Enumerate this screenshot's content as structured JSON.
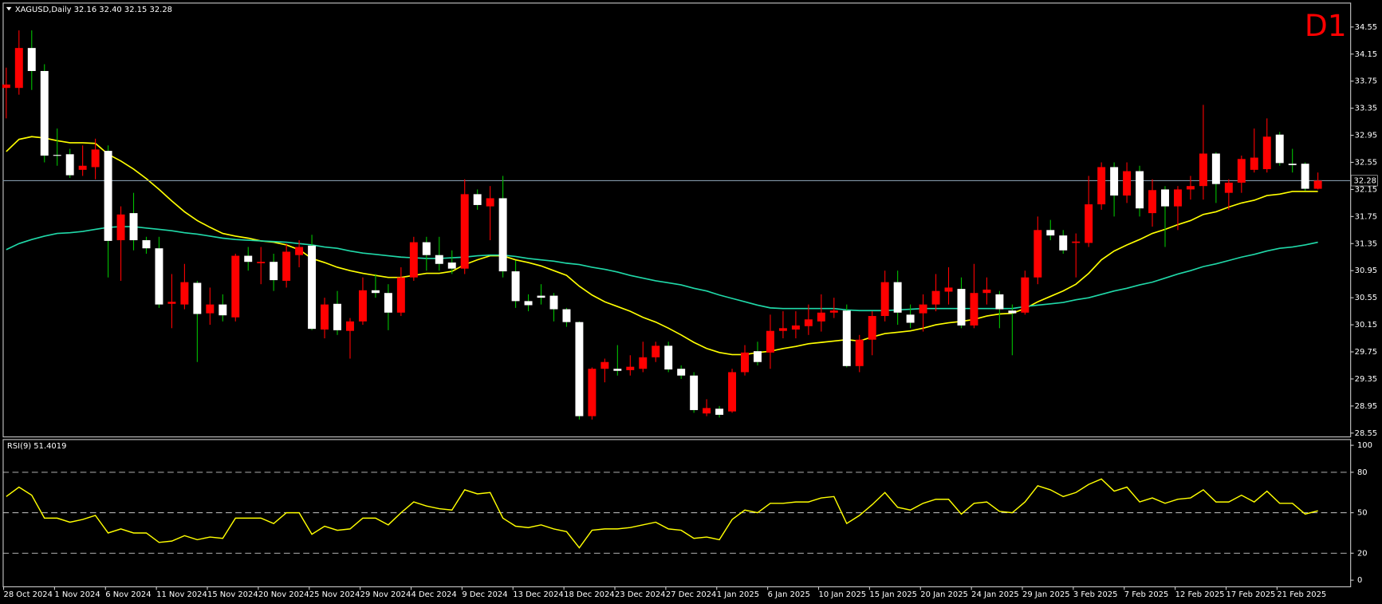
{
  "chart_data": [
    {
      "type": "candlestick",
      "title": "XAGUSD,Daily  32.16 32.40 32.15 32.28",
      "timeframe": "D1",
      "categories": [
        "28 Oct 2024",
        null,
        null,
        null,
        "1 Nov 2024",
        null,
        null,
        null,
        "6 Nov 2024",
        null,
        null,
        null,
        "11 Nov 2024",
        null,
        null,
        null,
        "15 Nov 2024",
        null,
        null,
        null,
        "20 Nov 2024",
        null,
        null,
        null,
        "25 Nov 2024",
        null,
        null,
        null,
        "29 Nov 2024",
        null,
        null,
        null,
        "4 Dec 2024",
        null,
        null,
        null,
        "9 Dec 2024",
        null,
        null,
        null,
        "13 Dec 2024",
        null,
        null,
        null,
        "18 Dec 2024",
        null,
        null,
        null,
        "23 Dec 2024",
        null,
        null,
        null,
        "27 Dec 2024",
        null,
        null,
        null,
        "1 Jan 2025",
        null,
        null,
        null,
        "6 Jan 2025",
        null,
        null,
        null,
        "10 Jan 2025",
        null,
        null,
        null,
        "15 Jan 2025",
        null,
        null,
        null,
        "20 Jan 2025",
        null,
        null,
        null,
        "24 Jan 2025",
        null,
        null,
        null,
        "29 Jan 2025",
        null,
        null,
        null,
        "3 Feb 2025",
        null,
        null,
        null,
        "7 Feb 2025",
        null,
        null,
        null,
        "12 Feb 2025",
        null,
        null,
        null,
        "17 Feb 2025",
        null,
        null,
        null,
        "21 Feb 2025",
        null,
        null,
        null
      ],
      "open": [
        33.65,
        33.65,
        34.24,
        33.9,
        32.66,
        32.67,
        32.44,
        32.48,
        32.72,
        31.4,
        31.8,
        31.4,
        31.28,
        30.46,
        30.45,
        30.77,
        30.32,
        30.45,
        30.26,
        31.17,
        31.06,
        31.08,
        30.8,
        31.18,
        31.32,
        30.08,
        30.46,
        30.06,
        30.2,
        30.66,
        30.62,
        30.33,
        30.85,
        31.37,
        31.18,
        31.07,
        30.98,
        32.08,
        31.9,
        32.02,
        30.94,
        30.5,
        30.58,
        30.58,
        30.38,
        30.19,
        28.8,
        29.5,
        29.5,
        29.48,
        29.5,
        29.67,
        29.84,
        29.5,
        29.4,
        28.84,
        28.91,
        28.87,
        29.45,
        29.76,
        29.74,
        30.06,
        30.08,
        30.13,
        30.2,
        30.33,
        30.36,
        29.54,
        29.93,
        30.28,
        30.78,
        30.3,
        30.32,
        30.45,
        30.64,
        30.68,
        30.14,
        30.62,
        30.6,
        30.36,
        30.33,
        30.85,
        31.55,
        31.47,
        31.36,
        31.36,
        31.93,
        32.48,
        32.06,
        32.42,
        31.8,
        32.15,
        31.9,
        32.15,
        32.2,
        32.68,
        32.1,
        32.25,
        32.44,
        32.45,
        32.96,
        32.53,
        32.53,
        32.16
      ],
      "high": [
        33.95,
        34.5,
        34.5,
        34.0,
        33.05,
        32.75,
        32.8,
        32.9,
        32.8,
        31.9,
        32.1,
        31.45,
        31.45,
        30.9,
        31.05,
        30.8,
        30.7,
        30.6,
        31.2,
        31.3,
        31.3,
        31.2,
        31.35,
        31.4,
        31.48,
        30.55,
        30.65,
        30.25,
        30.85,
        30.9,
        30.75,
        31.0,
        31.45,
        31.45,
        31.45,
        31.25,
        32.3,
        32.15,
        32.2,
        32.35,
        31.1,
        30.6,
        30.75,
        30.62,
        30.4,
        30.2,
        29.52,
        29.65,
        29.85,
        29.7,
        29.9,
        29.9,
        29.9,
        29.55,
        29.45,
        29.05,
        28.95,
        29.5,
        29.85,
        29.9,
        30.3,
        30.35,
        30.35,
        30.45,
        30.6,
        30.55,
        30.45,
        30.0,
        30.35,
        30.95,
        30.95,
        30.45,
        30.6,
        30.9,
        31.0,
        30.85,
        31.05,
        30.85,
        30.65,
        30.45,
        30.95,
        31.75,
        31.7,
        31.55,
        31.5,
        32.35,
        32.55,
        32.55,
        32.55,
        32.5,
        32.3,
        32.2,
        32.2,
        32.35,
        33.4,
        32.7,
        32.3,
        32.65,
        33.05,
        33.2,
        33.0,
        32.75,
        32.55,
        32.4
      ],
      "low": [
        33.2,
        33.55,
        33.62,
        32.55,
        32.5,
        32.32,
        32.35,
        32.3,
        30.85,
        30.8,
        31.25,
        31.2,
        30.4,
        30.1,
        30.38,
        29.6,
        30.15,
        30.2,
        30.2,
        30.95,
        30.75,
        30.65,
        30.7,
        31.0,
        30.07,
        29.95,
        30.0,
        29.65,
        30.15,
        30.55,
        30.07,
        30.28,
        30.8,
        30.95,
        30.95,
        30.9,
        30.9,
        31.85,
        31.4,
        30.85,
        30.4,
        30.35,
        30.45,
        30.2,
        30.12,
        28.75,
        28.75,
        29.3,
        29.4,
        29.4,
        29.45,
        29.6,
        29.45,
        29.35,
        28.85,
        28.8,
        28.78,
        28.85,
        29.4,
        29.55,
        29.5,
        29.95,
        29.95,
        30.0,
        30.05,
        30.25,
        29.52,
        29.45,
        29.7,
        30.2,
        30.15,
        30.1,
        30.05,
        30.35,
        30.45,
        30.1,
        30.1,
        30.45,
        30.1,
        29.7,
        30.3,
        30.75,
        31.4,
        31.2,
        30.85,
        31.3,
        31.85,
        31.75,
        31.95,
        31.75,
        31.6,
        31.3,
        31.55,
        32.0,
        32.0,
        31.95,
        31.85,
        32.1,
        32.4,
        32.4,
        32.5,
        32.4,
        32.13,
        32.15
      ],
      "close": [
        33.7,
        34.24,
        33.9,
        32.65,
        32.66,
        32.36,
        32.5,
        32.74,
        31.39,
        31.78,
        31.4,
        31.28,
        30.45,
        30.49,
        30.78,
        30.31,
        30.45,
        30.29,
        31.17,
        31.08,
        31.08,
        30.81,
        31.23,
        31.3,
        30.09,
        30.45,
        30.07,
        30.2,
        30.66,
        30.62,
        30.33,
        30.85,
        31.37,
        31.18,
        31.05,
        30.98,
        32.08,
        31.92,
        32.02,
        30.94,
        30.5,
        30.44,
        30.55,
        30.38,
        30.19,
        28.8,
        29.5,
        29.6,
        29.47,
        29.53,
        29.67,
        29.84,
        29.49,
        29.4,
        28.89,
        28.92,
        28.82,
        29.45,
        29.74,
        29.6,
        30.06,
        30.1,
        30.14,
        30.23,
        30.33,
        30.36,
        29.54,
        29.93,
        30.28,
        30.78,
        30.33,
        30.18,
        30.45,
        30.65,
        30.7,
        30.14,
        30.62,
        30.67,
        30.38,
        30.32,
        30.85,
        31.55,
        31.47,
        31.25,
        31.38,
        31.93,
        32.48,
        32.06,
        32.42,
        31.87,
        32.14,
        31.9,
        32.15,
        32.2,
        32.68,
        32.23,
        32.25,
        32.6,
        32.62,
        32.93,
        32.54,
        32.51,
        32.16,
        32.28
      ],
      "up_color": "#ff0000",
      "down_color": "#ffffff",
      "up_wick_color": "#ff0000",
      "down_wick_color": "#00c000",
      "overlays": [
        {
          "color": "#ffff00",
          "values": [
            32.71,
            32.89,
            32.93,
            32.91,
            32.87,
            32.84,
            32.84,
            32.83,
            32.67,
            32.57,
            32.45,
            32.31,
            32.15,
            31.98,
            31.82,
            31.69,
            31.59,
            31.5,
            31.46,
            31.43,
            31.39,
            31.37,
            31.33,
            31.26,
            31.13,
            31.07,
            31.0,
            30.95,
            30.91,
            30.88,
            30.85,
            30.85,
            30.88,
            30.91,
            30.91,
            30.94,
            31.04,
            31.11,
            31.17,
            31.17,
            31.11,
            31.07,
            31.02,
            30.95,
            30.88,
            30.72,
            30.59,
            30.49,
            30.42,
            30.35,
            30.26,
            30.19,
            30.1,
            30.0,
            29.89,
            29.8,
            29.74,
            29.71,
            29.71,
            29.74,
            29.76,
            29.8,
            29.83,
            29.87,
            29.89,
            29.91,
            29.93,
            29.91,
            29.97,
            30.02,
            30.04,
            30.06,
            30.1,
            30.15,
            30.18,
            30.2,
            30.23,
            30.28,
            30.31,
            30.32,
            30.39,
            30.49,
            30.57,
            30.65,
            30.75,
            30.91,
            31.11,
            31.24,
            31.33,
            31.41,
            31.5,
            31.56,
            31.63,
            31.69,
            31.78,
            31.82,
            31.89,
            31.95,
            31.99,
            32.06,
            32.08,
            32.12,
            32.12,
            32.12
          ]
        },
        {
          "color": "#20d8a8",
          "values": [
            31.26,
            31.35,
            31.41,
            31.46,
            31.5,
            31.51,
            31.53,
            31.56,
            31.59,
            31.6,
            31.6,
            31.58,
            31.56,
            31.54,
            31.51,
            31.49,
            31.46,
            31.43,
            31.41,
            31.4,
            31.39,
            31.38,
            31.37,
            31.35,
            31.33,
            31.3,
            31.28,
            31.24,
            31.21,
            31.19,
            31.17,
            31.15,
            31.14,
            31.13,
            31.13,
            31.14,
            31.15,
            31.17,
            31.18,
            31.18,
            31.16,
            31.13,
            31.11,
            31.09,
            31.06,
            31.04,
            31.0,
            30.97,
            30.93,
            30.88,
            30.84,
            30.8,
            30.77,
            30.74,
            30.69,
            30.65,
            30.59,
            30.54,
            30.49,
            30.44,
            30.4,
            30.39,
            30.39,
            30.39,
            30.39,
            30.39,
            30.37,
            30.36,
            30.36,
            30.36,
            30.37,
            30.38,
            30.39,
            30.39,
            30.39,
            30.39,
            30.39,
            30.39,
            30.39,
            30.39,
            30.42,
            30.44,
            30.46,
            30.48,
            30.52,
            30.55,
            30.6,
            30.65,
            30.69,
            30.74,
            30.78,
            30.84,
            30.9,
            30.95,
            31.01,
            31.05,
            31.1,
            31.15,
            31.19,
            31.24,
            31.28,
            31.3,
            31.33,
            31.37
          ]
        }
      ],
      "last_price": 32.28,
      "ylim": [
        28.5,
        34.91
      ],
      "yticks": [
        34.55,
        34.15,
        33.75,
        33.35,
        32.95,
        32.55,
        32.15,
        31.75,
        31.35,
        30.95,
        30.55,
        30.15,
        29.75,
        29.35,
        28.95,
        28.55
      ]
    },
    {
      "type": "line",
      "title": "RSI(9) 51.4019",
      "color": "#ffff00",
      "values": [
        62,
        69,
        63,
        46,
        46,
        43,
        45,
        48,
        35,
        38,
        35,
        35,
        28,
        29,
        33,
        30,
        32,
        31,
        46,
        46,
        46,
        42,
        50,
        50,
        34,
        40,
        37,
        38,
        46,
        46,
        41,
        50,
        58,
        55,
        53,
        52,
        67,
        64,
        65,
        46,
        40,
        39,
        41,
        38,
        36,
        24,
        37,
        38,
        38,
        39,
        41,
        43,
        38,
        37,
        31,
        32,
        30,
        45,
        52,
        50,
        57,
        57,
        58,
        58,
        61,
        62,
        42,
        48,
        56,
        65,
        54,
        52,
        57,
        60,
        60,
        49,
        57,
        58,
        51,
        50,
        58,
        70,
        67,
        62,
        65,
        71,
        75,
        66,
        69,
        58,
        61,
        57,
        60,
        61,
        67,
        58,
        58,
        63,
        58,
        66,
        57,
        57,
        49,
        51.4
      ],
      "ylim": [
        -4.6,
        104.6
      ],
      "yticks": [
        100,
        80,
        50,
        20,
        0
      ],
      "levels": [
        80,
        50,
        20
      ]
    }
  ]
}
